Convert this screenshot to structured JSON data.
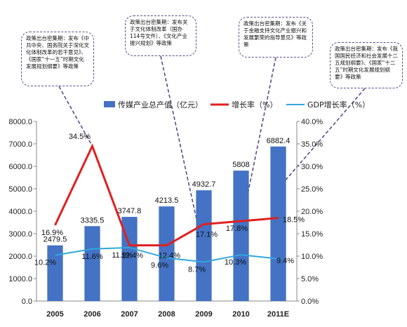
{
  "chart_data": {
    "type": "bar",
    "categories": [
      "2005",
      "2006",
      "2007",
      "2008",
      "2009",
      "2010",
      "2011E"
    ],
    "series": [
      {
        "name": "传媒产业总产值（亿元）",
        "type": "bar",
        "axis": "left",
        "color": "#4472c4",
        "values": [
          2479.5,
          3335.5,
          3747.8,
          4213.5,
          4932.7,
          5808.0,
          6882.4
        ],
        "labels": [
          "2479.5",
          "3335.5",
          "3747.8",
          "4213.5",
          "4932.7",
          "5808",
          "6882.4"
        ]
      },
      {
        "name": "增长率（%）",
        "type": "line",
        "axis": "right",
        "color": "#e02020",
        "values": [
          16.9,
          34.5,
          12.4,
          12.4,
          17.1,
          17.8,
          18.5
        ],
        "labels": [
          "16.9%",
          "34.5%",
          "12.4%",
          "12.4%",
          "17.1%",
          "17.8%",
          "18.5%"
        ]
      },
      {
        "name": "GDP增长率（%）",
        "type": "line",
        "axis": "right",
        "color": "#31a7dc",
        "values": [
          10.2,
          11.6,
          11.9,
          9.6,
          8.7,
          10.3,
          9.4
        ],
        "labels": [
          "10.2%",
          "11.6%",
          "11.9%",
          "9.6%",
          "8.7%",
          "10.3%",
          "9.4%"
        ]
      }
    ],
    "ylim_left": [
      0,
      8000
    ],
    "yticks_left": [
      "0.0",
      "1000.0",
      "2000.0",
      "3000.0",
      "4000.0",
      "5000.0",
      "6000.0",
      "7000.0",
      "8000.0"
    ],
    "ylim_right": [
      0,
      40
    ],
    "yticks_right": [
      "0.0%",
      "5.0%",
      "10.0%",
      "15.0%",
      "20.0%",
      "25.0%",
      "30.0%",
      "35.0%",
      "40.0%"
    ],
    "legend_position": "top",
    "grid": false,
    "annotations": [
      {
        "text": "政策出台密集期：发布《中共中央、国务院关于深化文化体制改革的若干意见》、《国家“十一五”时期文化发展规划纲要》等政策",
        "target_category": "2006"
      },
      {
        "text": "政策出台密集期：发布关于文化体制改革（国办114号文件）、《文化产业振兴规划》等政策",
        "target_category": "2009"
      },
      {
        "text": "政策出台密集期：发布《关于金融支持文化产业振兴和发展繁荣的指导意见》等政策",
        "target_category": "2010"
      },
      {
        "text": "政策出台密集期：发布《我国国民经济和社会发展十二五规划纲要》、《国家“十二五”时期文化发展规划纲要》等政策",
        "target_category": "2011E"
      }
    ]
  }
}
